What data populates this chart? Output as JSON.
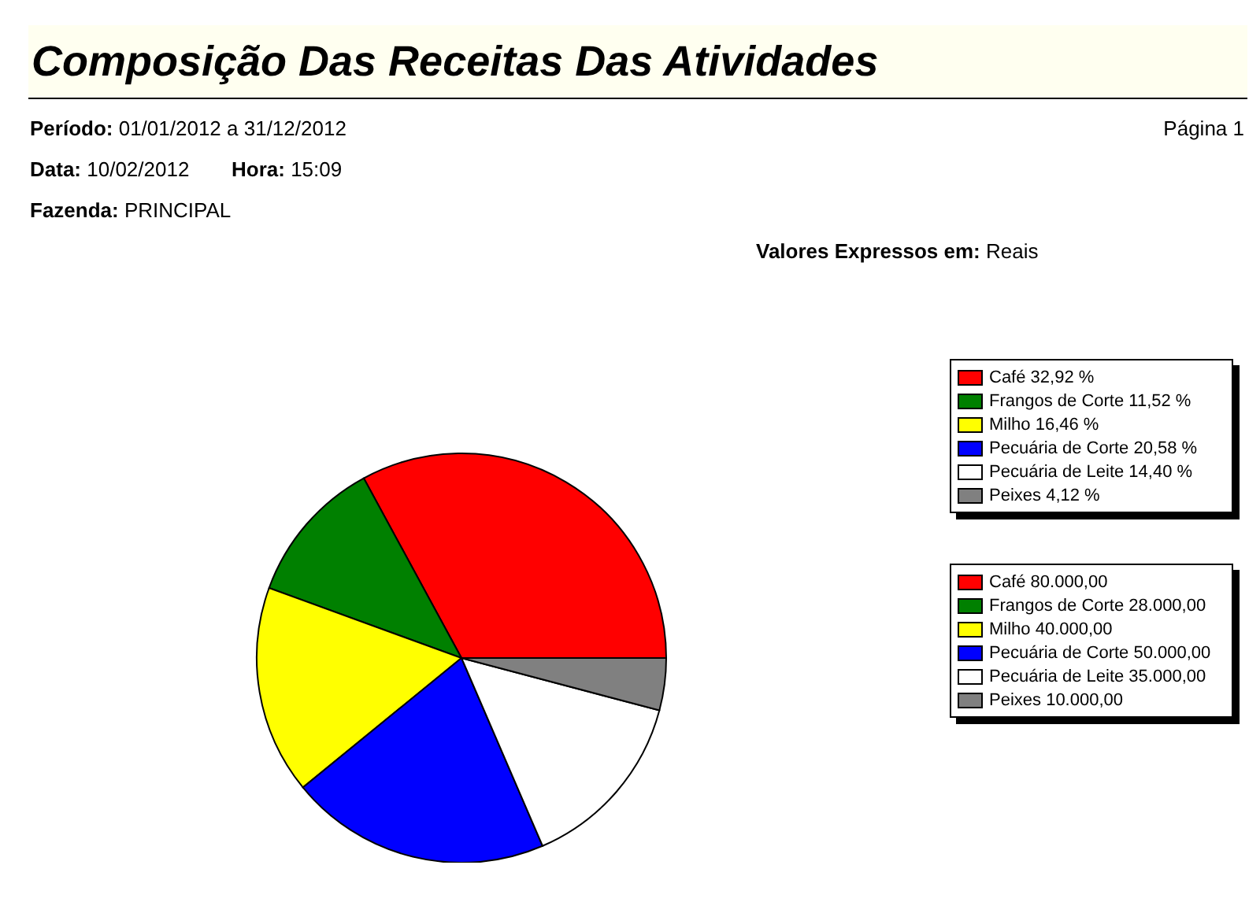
{
  "chart_data": {
    "type": "pie",
    "title": "Composição Das Receitas Das Atividades",
    "annotations": [
      "Período: 01/01/2012 a 31/12/2012",
      "Página 1",
      "Data: 10/02/2012",
      "Hora: 15:09",
      "Fazenda: PRINCIPAL",
      "Valores Expressos em: Reais",
      "80.000,00",
      "28.000,00",
      "40.000,00",
      "50.000,00",
      "35.000,00",
      "10.000,00"
    ],
    "categories": [
      "Café",
      "Frangos de Corte",
      "Milho",
      "Pecuária de Corte",
      "Pecuária de Leite",
      "Peixes"
    ],
    "values": [
      32.92,
      11.52,
      16.46,
      20.58,
      14.4,
      4.12
    ],
    "value_labels": [
      "32,92 %",
      "11,52 %",
      "16,46 %",
      "20,58 %",
      "14,40 %",
      "4,12 %"
    ],
    "colors": [
      "#ff0000",
      "#008000",
      "#ffff00",
      "#0000ff",
      "#ffffff",
      "#808080"
    ],
    "legend": "right"
  }
}
